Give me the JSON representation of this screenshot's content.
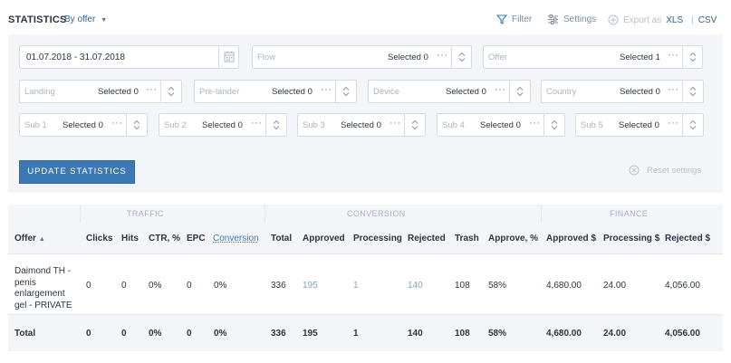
{
  "header": {
    "title": "STATISTICS",
    "mode": "By offer",
    "filter_label": "Filter",
    "settings_label": "Settings",
    "export_label": "Export as",
    "xls_label": "XLS",
    "csv_label": "CSV"
  },
  "filters": {
    "date_range": "01.07.2018 - 31.07.2018",
    "row1": [
      {
        "placeholder": "Flow",
        "selected": "Selected 0"
      },
      {
        "placeholder": "Offer",
        "selected": "Selected 1"
      }
    ],
    "row2": [
      {
        "placeholder": "Landing",
        "selected": "Selected 0"
      },
      {
        "placeholder": "Pre-lander",
        "selected": "Selected 0"
      },
      {
        "placeholder": "Device",
        "selected": "Selected 0"
      },
      {
        "placeholder": "Country",
        "selected": "Selected 0"
      }
    ],
    "row3": [
      {
        "placeholder": "Sub 1",
        "selected": "Selected 0"
      },
      {
        "placeholder": "Sub 2",
        "selected": "Selected 0"
      },
      {
        "placeholder": "Sub 3",
        "selected": "Selected 0"
      },
      {
        "placeholder": "Sub 4",
        "selected": "Selected 0"
      },
      {
        "placeholder": "Sub 5",
        "selected": "Selected 0"
      }
    ],
    "dots": "···",
    "update_button": "UPDATE STATISTICS",
    "reset_label": "Reset settings"
  },
  "table": {
    "groups": {
      "traffic": "TRAFFIC",
      "conversion": "CONVERSION",
      "finance": "FINANCE"
    },
    "columns": [
      "Offer",
      "Clicks",
      "Hits",
      "CTR, %",
      "EPC",
      "Conversion",
      "Total",
      "Approved",
      "Processing",
      "Rejected",
      "Trash",
      "Approve, %",
      "Approved $",
      "Processing $",
      "Rejected $"
    ],
    "row": {
      "offer": "Daimond TH - penis enlargement gel - PRIVATE",
      "cells": [
        "0",
        "0",
        "0%",
        "0",
        "0%",
        "336",
        "195",
        "1",
        "140",
        "108",
        "58%",
        "4,680.00",
        "24.00",
        "4,056.00"
      ]
    },
    "total": {
      "label": "Total",
      "cells": [
        "0",
        "0",
        "0%",
        "0",
        "0%",
        "336",
        "195",
        "1",
        "140",
        "108",
        "58%",
        "4,680.00",
        "24.00",
        "4,056.00"
      ]
    }
  },
  "colors": {
    "accent": "#3b78b4",
    "panel_bg": "#f3f5f9",
    "link": "#7fa3c8"
  },
  "icons": [
    "chevron-down-icon",
    "filter-icon",
    "settings-icon",
    "export-icon",
    "calendar-icon",
    "updown-icon",
    "close-circle-icon",
    "sort-asc-icon"
  ]
}
